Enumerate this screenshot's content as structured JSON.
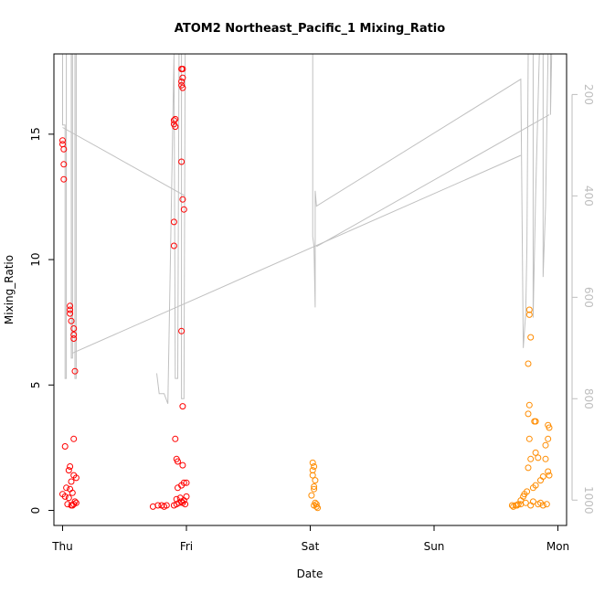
{
  "chart_data": {
    "type": "scatter",
    "title": "ATOM2 Northeast_Pacific_1 Mixing_Ratio",
    "xlabel": "Date",
    "ylabel": "Mixing_Ratio",
    "x_ticks": [
      "Thu",
      "Fri",
      "Sat",
      "Sun",
      "Mon"
    ],
    "y_ticks": [
      0,
      5,
      10,
      15
    ],
    "ylim": [
      -0.6,
      18.2
    ],
    "xlim": [
      -0.07,
      4.07
    ],
    "y2_ticks": [
      200,
      400,
      600,
      800,
      1000
    ],
    "y2lim": [
      1050,
      120
    ],
    "colors": {
      "red": "#ff0000",
      "orange": "#ff8c00",
      "gray": "#c0c0c0",
      "axis": "#000000",
      "y2axis": "#bebebe"
    },
    "series": [
      {
        "color": "red",
        "points": [
          [
            0.0,
            14.75
          ],
          [
            0.0,
            14.6
          ],
          [
            0.01,
            14.4
          ],
          [
            0.01,
            13.8
          ],
          [
            0.01,
            13.2
          ],
          [
            0.06,
            8.15
          ],
          [
            0.06,
            8.0
          ],
          [
            0.06,
            7.85
          ],
          [
            0.07,
            7.55
          ],
          [
            0.09,
            7.25
          ],
          [
            0.09,
            7.0
          ],
          [
            0.09,
            6.85
          ],
          [
            0.1,
            5.55
          ],
          [
            0.09,
            2.85
          ],
          [
            0.02,
            2.55
          ],
          [
            0.06,
            1.75
          ],
          [
            0.05,
            1.6
          ],
          [
            0.09,
            1.4
          ],
          [
            0.11,
            1.3
          ],
          [
            0.07,
            1.15
          ],
          [
            0.03,
            0.9
          ],
          [
            0.06,
            0.85
          ],
          [
            0.08,
            0.7
          ],
          [
            0.0,
            0.65
          ],
          [
            0.02,
            0.55
          ],
          [
            0.05,
            0.5
          ],
          [
            0.1,
            0.35
          ],
          [
            0.11,
            0.3
          ],
          [
            0.09,
            0.25
          ],
          [
            0.07,
            0.2
          ],
          [
            0.04,
            0.25
          ],
          [
            0.08,
            0.2
          ],
          [
            0.73,
            0.15
          ],
          [
            0.77,
            0.2
          ],
          [
            0.8,
            0.2
          ],
          [
            0.82,
            0.15
          ],
          [
            0.84,
            0.2
          ],
          [
            0.9,
            0.2
          ],
          [
            0.92,
            0.25
          ],
          [
            0.94,
            0.3
          ],
          [
            0.96,
            0.35
          ],
          [
            0.98,
            0.4
          ],
          [
            0.92,
            0.45
          ],
          [
            0.95,
            0.5
          ],
          [
            1.0,
            0.55
          ],
          [
            0.97,
            0.3
          ],
          [
            0.99,
            0.25
          ],
          [
            0.93,
            0.9
          ],
          [
            0.96,
            1.0
          ],
          [
            0.98,
            1.1
          ],
          [
            1.0,
            1.1
          ],
          [
            0.97,
            1.8
          ],
          [
            0.93,
            1.95
          ],
          [
            0.92,
            2.05
          ],
          [
            0.91,
            2.85
          ],
          [
            0.97,
            4.15
          ],
          [
            0.96,
            7.15
          ],
          [
            0.9,
            10.55
          ],
          [
            0.9,
            11.5
          ],
          [
            0.98,
            12.0
          ],
          [
            0.97,
            12.4
          ],
          [
            0.96,
            13.9
          ],
          [
            0.91,
            15.3
          ],
          [
            0.9,
            15.4
          ],
          [
            0.9,
            15.55
          ],
          [
            0.91,
            15.6
          ],
          [
            0.97,
            16.85
          ],
          [
            0.96,
            16.95
          ],
          [
            0.96,
            17.1
          ],
          [
            0.97,
            17.25
          ],
          [
            0.96,
            17.6
          ],
          [
            0.97,
            17.6
          ]
        ]
      },
      {
        "color": "orange",
        "points": [
          [
            2.02,
            1.9
          ],
          [
            2.03,
            1.75
          ],
          [
            2.02,
            1.6
          ],
          [
            2.02,
            1.4
          ],
          [
            2.04,
            1.2
          ],
          [
            2.03,
            0.95
          ],
          [
            2.03,
            0.85
          ],
          [
            2.01,
            0.6
          ],
          [
            2.04,
            0.3
          ],
          [
            2.05,
            0.25
          ],
          [
            2.03,
            0.2
          ],
          [
            2.05,
            0.15
          ],
          [
            2.06,
            0.1
          ],
          [
            3.63,
            0.2
          ],
          [
            3.66,
            0.2
          ],
          [
            3.68,
            0.25
          ],
          [
            3.7,
            0.4
          ],
          [
            3.72,
            0.55
          ],
          [
            3.73,
            0.65
          ],
          [
            3.75,
            0.75
          ],
          [
            3.8,
            0.9
          ],
          [
            3.82,
            1.0
          ],
          [
            3.86,
            1.2
          ],
          [
            3.88,
            1.35
          ],
          [
            3.93,
            1.4
          ],
          [
            3.92,
            1.55
          ],
          [
            3.76,
            1.7
          ],
          [
            3.78,
            2.05
          ],
          [
            3.9,
            2.05
          ],
          [
            3.84,
            2.1
          ],
          [
            3.82,
            2.3
          ],
          [
            3.9,
            2.6
          ],
          [
            3.77,
            2.85
          ],
          [
            3.92,
            2.85
          ],
          [
            3.93,
            3.3
          ],
          [
            3.92,
            3.4
          ],
          [
            3.81,
            3.55
          ],
          [
            3.82,
            3.55
          ],
          [
            3.76,
            3.85
          ],
          [
            3.77,
            4.2
          ],
          [
            3.76,
            5.85
          ],
          [
            3.78,
            6.9
          ],
          [
            3.77,
            7.8
          ],
          [
            3.77,
            8.0
          ],
          [
            3.64,
            0.15
          ],
          [
            3.67,
            0.2
          ],
          [
            3.7,
            0.25
          ],
          [
            3.74,
            0.3
          ],
          [
            3.78,
            0.2
          ],
          [
            3.84,
            0.25
          ],
          [
            3.88,
            0.2
          ],
          [
            3.91,
            0.25
          ],
          [
            3.86,
            0.3
          ],
          [
            3.8,
            0.35
          ]
        ]
      }
    ],
    "profile_lines": [
      [
        [
          0.0,
          120
        ],
        [
          0.0,
          260
        ],
        [
          0.02,
          260
        ],
        [
          0.02,
          760
        ],
        [
          0.03,
          760
        ],
        [
          0.03,
          120
        ],
        [
          0.07,
          120
        ],
        [
          0.07,
          720
        ],
        [
          0.08,
          720
        ],
        [
          0.08,
          120
        ],
        [
          0.1,
          120
        ],
        [
          0.1,
          760
        ],
        [
          0.11,
          760
        ],
        [
          0.11,
          120
        ]
      ],
      [
        [
          0.0,
          265
        ],
        [
          0.99,
          400
        ]
      ],
      [
        [
          0.08,
          710
        ],
        [
          3.7,
          320
        ]
      ],
      [
        [
          0.76,
          750
        ],
        [
          0.78,
          790
        ],
        [
          0.82,
          790
        ],
        [
          0.85,
          810
        ],
        [
          0.9,
          120
        ],
        [
          0.91,
          760
        ],
        [
          0.93,
          760
        ],
        [
          0.94,
          120
        ],
        [
          0.96,
          120
        ],
        [
          0.96,
          800
        ],
        [
          0.98,
          800
        ],
        [
          0.99,
          120
        ],
        [
          1.0,
          120
        ]
      ],
      [
        [
          2.02,
          120
        ],
        [
          2.02,
          480
        ],
        [
          2.03,
          500
        ],
        [
          2.04,
          620
        ],
        [
          2.04,
          390
        ],
        [
          2.05,
          420
        ],
        [
          3.7,
          170
        ],
        [
          3.72,
          700
        ],
        [
          3.74,
          630
        ],
        [
          3.75,
          500
        ],
        [
          3.76,
          120
        ],
        [
          3.8,
          120
        ],
        [
          3.8,
          640
        ],
        [
          3.82,
          400
        ],
        [
          3.85,
          120
        ],
        [
          3.88,
          120
        ],
        [
          3.88,
          560
        ],
        [
          3.9,
          420
        ],
        [
          3.92,
          120
        ],
        [
          3.94,
          120
        ],
        [
          3.94,
          240
        ],
        [
          3.95,
          120
        ]
      ],
      [
        [
          2.05,
          500
        ],
        [
          3.93,
          240
        ]
      ]
    ]
  }
}
